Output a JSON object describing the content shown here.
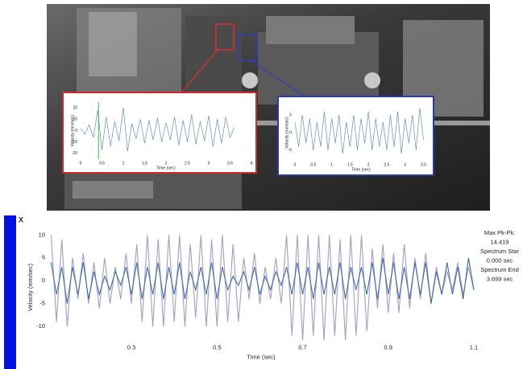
{
  "header": {
    "close": "X"
  },
  "sidebar": {
    "lines": [
      "Max Pk-Pk:",
      "14.419",
      "Spectrum Star",
      "0.000 sec",
      "Spectrum End",
      "3.699 sec"
    ]
  },
  "chart_data": [
    {
      "type": "line",
      "x_label": "Time (sec)",
      "y_label": "Velocity (mm/sec)",
      "x": [
        0,
        0.1,
        0.2,
        0.3,
        0.4,
        0.5,
        0.6,
        0.7,
        0.8,
        0.9,
        1,
        1.1,
        1.2,
        1.3,
        1.4,
        1.5,
        1.6,
        1.7,
        1.8,
        1.9,
        2,
        2.1,
        2.2,
        2.3,
        2.4,
        2.5,
        2.6,
        2.7,
        2.8,
        2.9,
        3,
        3.1,
        3.2,
        3.3,
        3.4,
        3.5,
        3.6
      ],
      "series": [
        {
          "color": "#4a7fbf",
          "values": [
            2,
            -3,
            5,
            -6,
            18,
            -17,
            12,
            -14,
            8,
            -9,
            20,
            -18,
            6,
            -7,
            10,
            -11,
            9,
            -8,
            11,
            -10,
            7,
            -8,
            12,
            -13,
            9,
            -10,
            14,
            -12,
            8,
            -9,
            13,
            -14,
            10,
            -11,
            12,
            -6,
            3
          ]
        }
      ],
      "marker_x": 0.42,
      "marker_color": "#3ec43e",
      "xlim": [
        0,
        4
      ],
      "ylim": [
        -25,
        25
      ],
      "xticks": [
        0,
        0.5,
        1,
        1.5,
        2,
        2.5,
        3,
        3.5,
        4
      ],
      "yticks": [
        20,
        10,
        0,
        -10,
        -20
      ]
    },
    {
      "type": "line",
      "x_label": "Time (sec)",
      "y_label": "Velocity (mm/sec)",
      "x": [
        0,
        0.1,
        0.2,
        0.3,
        0.4,
        0.5,
        0.6,
        0.7,
        0.8,
        0.9,
        1,
        1.1,
        1.2,
        1.3,
        1.4,
        1.5,
        1.6,
        1.7,
        1.8,
        1.9,
        2,
        2.1,
        2.2,
        2.3,
        2.4,
        2.5,
        2.6,
        2.7,
        2.8,
        2.9,
        3,
        3.1,
        3.2,
        3.3,
        3.4,
        3.5
      ],
      "series": [
        {
          "color": "#4a7fbf",
          "values": [
            3,
            -4,
            5,
            -3,
            4,
            -5,
            3,
            -4,
            6,
            -5,
            4,
            -3,
            5,
            -6,
            3,
            -4,
            5,
            -5,
            4,
            -3,
            6,
            -5,
            4,
            -4,
            3,
            -5,
            5,
            -4,
            6,
            -6,
            4,
            -3,
            5,
            -5,
            7,
            -2
          ]
        }
      ],
      "xlim": [
        0,
        3.6
      ],
      "ylim": [
        -8,
        8
      ],
      "xticks": [
        0,
        0.5,
        1,
        1.5,
        2,
        2.5,
        3,
        3.5
      ],
      "yticks": [
        5,
        0,
        -5
      ]
    },
    {
      "type": "line",
      "x_label": "Time (sec)",
      "y_label": "Velocity (mm/sec)",
      "x": [
        0.1125,
        0.125,
        0.1375,
        0.15,
        0.1625,
        0.175,
        0.1875,
        0.2,
        0.2125,
        0.225,
        0.2375,
        0.25,
        0.2625,
        0.275,
        0.2875,
        0.3,
        0.3125,
        0.325,
        0.3375,
        0.35,
        0.3625,
        0.375,
        0.3875,
        0.4,
        0.4125,
        0.425,
        0.4375,
        0.45,
        0.4625,
        0.475,
        0.4875,
        0.5,
        0.5125,
        0.525,
        0.5375,
        0.55,
        0.5625,
        0.575,
        0.5875,
        0.6,
        0.6125,
        0.625,
        0.6375,
        0.65,
        0.6625,
        0.675,
        0.6875,
        0.7,
        0.7125,
        0.725,
        0.7375,
        0.75,
        0.7625,
        0.775,
        0.7875,
        0.8,
        0.8125,
        0.825,
        0.8375,
        0.85,
        0.8625,
        0.875,
        0.8875,
        0.9,
        0.9125,
        0.925,
        0.9375,
        0.95,
        0.9625,
        0.975,
        0.9875,
        1,
        1.0125,
        1.025,
        1.0375,
        1.05,
        1.0625,
        1.075,
        1.0875,
        1.1
      ],
      "series": [
        {
          "color": "#a99bc9",
          "values": [
            10,
            -9,
            9,
            -10,
            5,
            -4,
            6,
            -5,
            4,
            -6,
            5,
            -5,
            3,
            -4,
            6,
            -5,
            8,
            -9,
            10,
            -10,
            9,
            -10,
            10,
            -9,
            10,
            -10,
            8,
            -8,
            10,
            -10,
            9,
            -10,
            10,
            -9,
            8,
            -9,
            5,
            -4,
            6,
            -5,
            3,
            -4,
            5,
            -5,
            10,
            -12,
            10,
            -13,
            10,
            -12,
            10,
            -13,
            10,
            -12,
            9,
            -13,
            10,
            -12,
            10,
            -11,
            7,
            -6,
            8,
            -7,
            6,
            -7,
            8,
            -6,
            5,
            -4,
            6,
            -5,
            3,
            -3,
            2,
            -2,
            4,
            -3,
            3,
            -2
          ]
        },
        {
          "color": "#3c6fa6",
          "values": [
            4,
            -3,
            3,
            -5,
            3,
            -3,
            4,
            -4,
            2,
            -3,
            1,
            -2,
            2,
            -1,
            3,
            -3,
            4,
            -4,
            3,
            -3,
            4,
            -4,
            3,
            -3,
            4,
            -4,
            2,
            -2,
            3,
            -3,
            4,
            -4,
            3,
            -2,
            1,
            -1,
            2,
            -2,
            3,
            -3,
            1,
            -2,
            2,
            -1,
            3,
            -3,
            4,
            -3,
            3,
            -4,
            4,
            -3,
            3,
            -3,
            4,
            -4,
            3,
            -2,
            3,
            -3,
            4,
            -4,
            5,
            -3,
            4,
            -4,
            3,
            -4,
            4,
            -3,
            4,
            -5,
            2,
            -3,
            4,
            -3,
            3,
            -4,
            5,
            -2
          ]
        }
      ],
      "xlim": [
        0.106,
        1.1
      ],
      "ylim": [
        -13.3,
        10.4
      ],
      "xticks": [
        0.3,
        0.5,
        0.7,
        0.9,
        1.1
      ],
      "yticks": [
        10,
        5,
        0,
        -5,
        -10
      ]
    }
  ]
}
